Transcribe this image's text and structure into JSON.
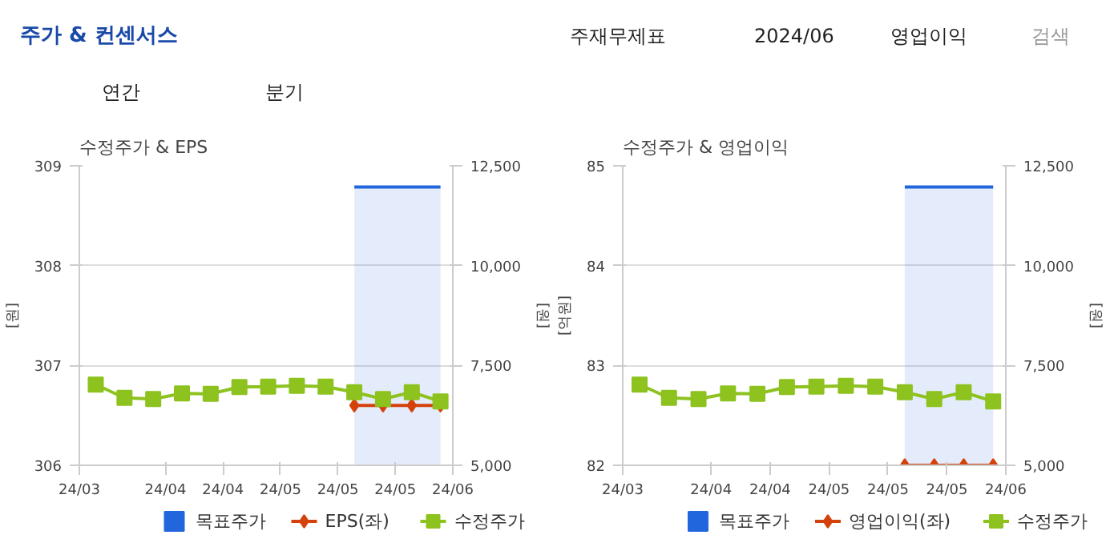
{
  "chart_data": [
    {
      "type": "other",
      "title": "주가 & 컨센서스",
      "annotations": [
        "주재무제표",
        "2024/06",
        "영업이익",
        "검색",
        "연간",
        "분기"
      ]
    },
    {
      "type": "line",
      "title": "수정주가 & EPS",
      "ylabel": "[원]",
      "y2label": "[원]",
      "x": [
        "2024-03-15",
        "2024-03-22",
        "2024-03-29",
        "2024-04-05",
        "2024-04-12",
        "2024-04-19",
        "2024-04-26",
        "2024-05-03",
        "2024-05-10",
        "2024-05-17",
        "2024-05-24",
        "2024-05-31",
        "2024-06-07"
      ],
      "xlim": [
        "2024-03-11",
        "2024-06-10"
      ],
      "xticks": [
        {
          "value": "2024-03-11",
          "label": "24/03"
        },
        {
          "value": "2024-04-01",
          "label": "24/04"
        },
        {
          "value": "2024-04-15",
          "label": "24/04"
        },
        {
          "value": "2024-04-29",
          "label": "24/05"
        },
        {
          "value": "2024-05-13",
          "label": "24/05"
        },
        {
          "value": "2024-05-27",
          "label": "24/05"
        },
        {
          "value": "2024-06-10",
          "label": "24/06"
        }
      ],
      "ylim": [
        306,
        309
      ],
      "yticks": [
        306,
        307,
        308,
        309
      ],
      "y2lim": [
        5000,
        12500
      ],
      "y2ticks": [
        {
          "value": 5000,
          "label": "5,000"
        },
        {
          "value": 7500,
          "label": "7,500"
        },
        {
          "value": 10000,
          "label": "10,000"
        },
        {
          "value": 12500,
          "label": "12,500"
        }
      ],
      "grid": "y",
      "legend": "bottom",
      "series": [
        {
          "name": "목표주가",
          "type": "area",
          "axis": "y2",
          "color": "#2266dd",
          "marker": "none",
          "values": [
            null,
            null,
            null,
            null,
            null,
            null,
            null,
            null,
            null,
            11970,
            11970,
            11970,
            11970
          ]
        },
        {
          "name": "EPS(좌)",
          "type": "line",
          "color": "#d4420c",
          "marker": "diamond",
          "values": [
            null,
            null,
            null,
            null,
            null,
            null,
            null,
            null,
            null,
            306.6,
            306.6,
            306.6,
            306.6
          ]
        },
        {
          "name": "수정주가",
          "type": "line",
          "axis": "y2",
          "color": "#8dc21f",
          "marker": "square",
          "values": [
            7020,
            6690,
            6660,
            6800,
            6790,
            6960,
            6970,
            6990,
            6970,
            6830,
            6660,
            6830,
            6600
          ]
        }
      ]
    },
    {
      "type": "line",
      "title": "수정주가 & 영업이익",
      "ylabel": "[억원]",
      "y2label": "[원]",
      "x": [
        "2024-03-15",
        "2024-03-22",
        "2024-03-29",
        "2024-04-05",
        "2024-04-12",
        "2024-04-19",
        "2024-04-26",
        "2024-05-03",
        "2024-05-10",
        "2024-05-17",
        "2024-05-24",
        "2024-05-31",
        "2024-06-07"
      ],
      "xlim": [
        "2024-03-11",
        "2024-06-10"
      ],
      "xticks": [
        {
          "value": "2024-03-11",
          "label": "24/03"
        },
        {
          "value": "2024-04-01",
          "label": "24/04"
        },
        {
          "value": "2024-04-15",
          "label": "24/04"
        },
        {
          "value": "2024-04-29",
          "label": "24/05"
        },
        {
          "value": "2024-05-13",
          "label": "24/05"
        },
        {
          "value": "2024-05-27",
          "label": "24/05"
        },
        {
          "value": "2024-06-10",
          "label": "24/06"
        }
      ],
      "ylim": [
        82,
        85
      ],
      "yticks": [
        82,
        83,
        84,
        85
      ],
      "y2lim": [
        5000,
        12500
      ],
      "y2ticks": [
        {
          "value": 5000,
          "label": "5,000"
        },
        {
          "value": 7500,
          "label": "7,500"
        },
        {
          "value": 10000,
          "label": "10,000"
        },
        {
          "value": 12500,
          "label": "12,500"
        }
      ],
      "grid": "y",
      "legend": "bottom",
      "series": [
        {
          "name": "목표주가",
          "type": "area",
          "axis": "y2",
          "color": "#2266dd",
          "marker": "none",
          "values": [
            null,
            null,
            null,
            null,
            null,
            null,
            null,
            null,
            null,
            11970,
            11970,
            11970,
            11970
          ]
        },
        {
          "name": "영업이익(좌)",
          "type": "line",
          "color": "#d4420c",
          "marker": "diamond",
          "values": [
            null,
            null,
            null,
            null,
            null,
            null,
            null,
            null,
            null,
            82,
            82,
            82,
            82
          ]
        },
        {
          "name": "수정주가",
          "type": "line",
          "axis": "y2",
          "color": "#8dc21f",
          "marker": "square",
          "values": [
            7020,
            6690,
            6660,
            6800,
            6790,
            6960,
            6970,
            6990,
            6970,
            6830,
            6660,
            6830,
            6600
          ]
        }
      ]
    }
  ]
}
